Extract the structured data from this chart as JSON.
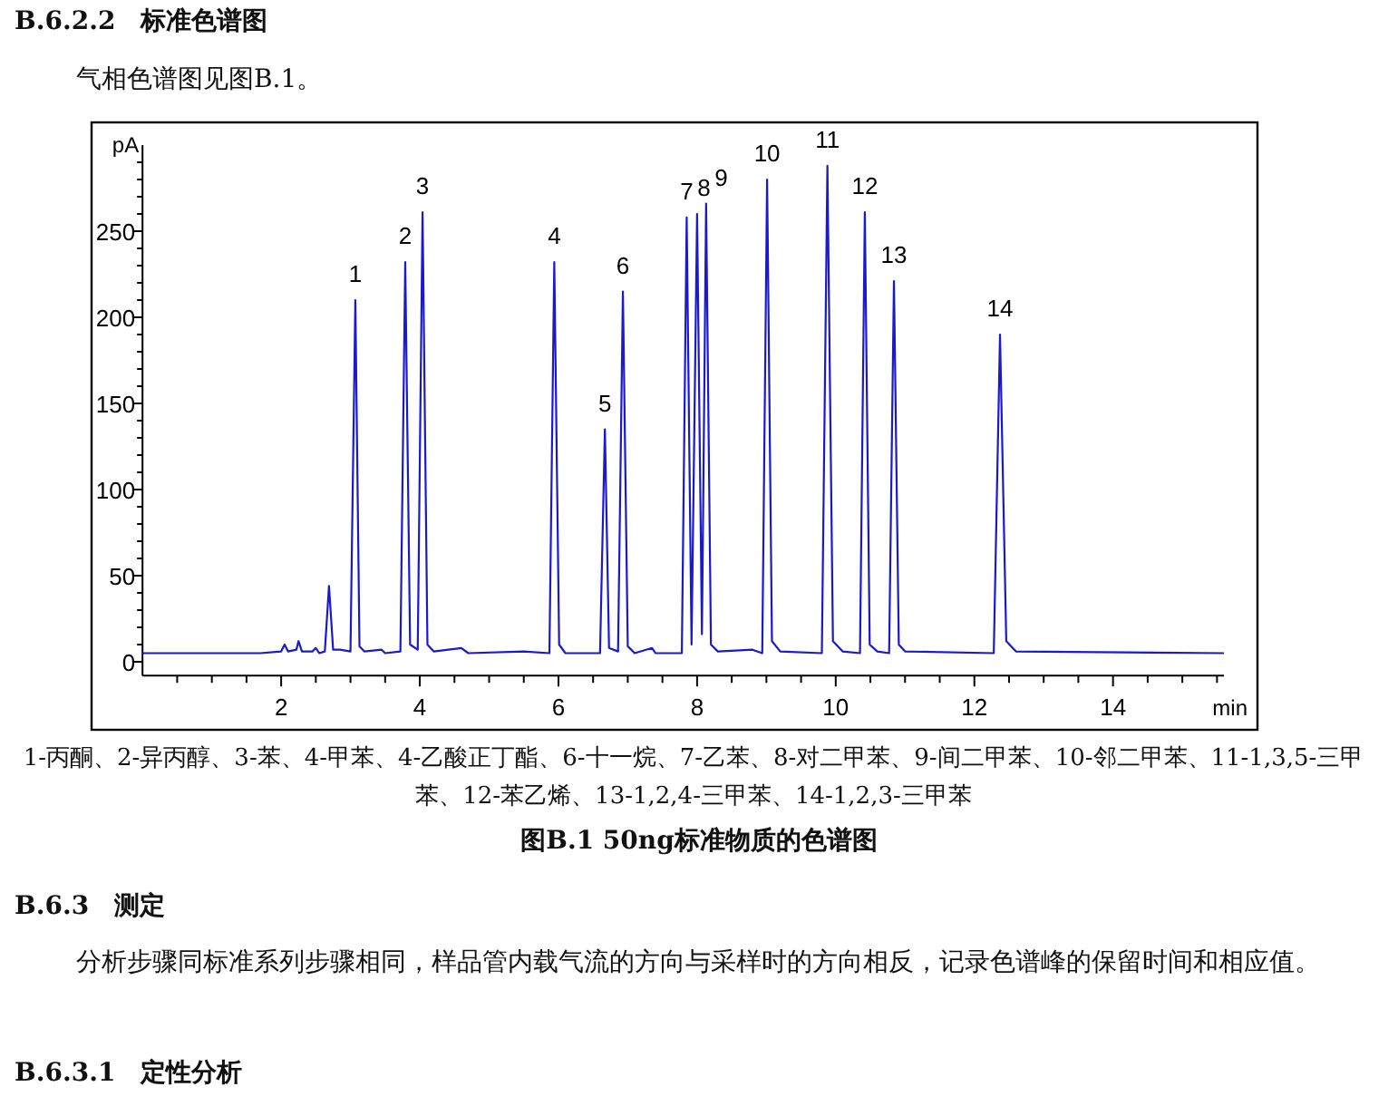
{
  "chart_data": {
    "type": "line",
    "title": "B.6.2.2　标准色谱图",
    "subtitle": "气相色谱图见图B.1。",
    "xlabel": "min",
    "ylabel": "pA",
    "x": [
      0,
      1.7,
      2.0,
      2.05,
      2.1,
      2.22,
      2.25,
      2.3,
      2.45,
      2.5,
      2.55,
      2.63,
      2.69,
      2.75,
      2.85,
      3.0,
      3.07,
      3.13,
      3.2,
      3.45,
      3.5,
      3.72,
      3.79,
      3.86,
      3.97,
      4.04,
      4.11,
      4.2,
      4.6,
      4.7,
      5.5,
      5.87,
      5.94,
      6.01,
      6.1,
      6.6,
      6.67,
      6.73,
      6.86,
      6.93,
      7.0,
      7.1,
      7.35,
      7.4,
      7.78,
      7.85,
      7.92,
      8.0,
      8.07,
      8.13,
      8.2,
      8.3,
      8.8,
      8.94,
      9.01,
      9.08,
      9.2,
      9.8,
      9.88,
      9.96,
      10.1,
      10.35,
      10.42,
      10.49,
      10.6,
      10.77,
      10.84,
      10.91,
      11.0,
      12.28,
      12.37,
      12.46,
      12.6,
      15.6
    ],
    "series": [
      {
        "color": "#1a1acc",
        "values": [
          5,
          5,
          6,
          10,
          6,
          7,
          12,
          6,
          6,
          8,
          5,
          6,
          44,
          7,
          7,
          6,
          210,
          9,
          6,
          7,
          5,
          6,
          232,
          10,
          7,
          261,
          10,
          6,
          8,
          5,
          6,
          5,
          232,
          10,
          5,
          5,
          135,
          8,
          6,
          215,
          9,
          5,
          8,
          5,
          5,
          258,
          10,
          260,
          16,
          266,
          10,
          6,
          7,
          5,
          280,
          12,
          6,
          5,
          288,
          12,
          6,
          5,
          261,
          10,
          6,
          5,
          221,
          10,
          6,
          5,
          190,
          12,
          6,
          5
        ]
      }
    ],
    "xlim": [
      0,
      15.6
    ],
    "ylim": [
      -8,
      300
    ],
    "xticks": [
      {
        "value": 0.5,
        "label": null
      },
      {
        "value": 1,
        "label": null
      },
      {
        "value": 1.5,
        "label": null
      },
      2,
      {
        "value": 2.5,
        "label": null
      },
      {
        "value": 3,
        "label": null
      },
      {
        "value": 3.5,
        "label": null
      },
      4,
      {
        "value": 4.5,
        "label": null
      },
      {
        "value": 5,
        "label": null
      },
      {
        "value": 5.5,
        "label": null
      },
      6,
      {
        "value": 6.5,
        "label": null
      },
      {
        "value": 7,
        "label": null
      },
      {
        "value": 7.5,
        "label": null
      },
      8,
      {
        "value": 8.5,
        "label": null
      },
      {
        "value": 9,
        "label": null
      },
      {
        "value": 9.5,
        "label": null
      },
      10,
      {
        "value": 10.5,
        "label": null
      },
      {
        "value": 11,
        "label": null
      },
      {
        "value": 11.5,
        "label": null
      },
      12,
      {
        "value": 12.5,
        "label": null
      },
      {
        "value": 13,
        "label": null
      },
      {
        "value": 13.5,
        "label": null
      },
      14,
      {
        "value": 14.5,
        "label": null
      },
      {
        "value": 15,
        "label": null
      },
      {
        "value": 15.5,
        "label": null
      }
    ],
    "yticks": [
      0,
      {
        "value": 10,
        "label": null
      },
      {
        "value": 20,
        "label": null
      },
      {
        "value": 30,
        "label": null
      },
      {
        "value": 40,
        "label": null
      },
      50,
      {
        "value": 60,
        "label": null
      },
      {
        "value": 70,
        "label": null
      },
      {
        "value": 80,
        "label": null
      },
      {
        "value": 90,
        "label": null
      },
      100,
      {
        "value": 110,
        "label": null
      },
      {
        "value": 120,
        "label": null
      },
      {
        "value": 130,
        "label": null
      },
      {
        "value": 140,
        "label": null
      },
      150,
      {
        "value": 160,
        "label": null
      },
      {
        "value": 170,
        "label": null
      },
      {
        "value": 180,
        "label": null
      },
      {
        "value": 190,
        "label": null
      },
      200,
      {
        "value": 210,
        "label": null
      },
      {
        "value": 220,
        "label": null
      },
      {
        "value": 230,
        "label": null
      },
      {
        "value": 240,
        "label": null
      },
      250,
      {
        "value": 260,
        "label": null
      },
      {
        "value": 270,
        "label": null
      },
      {
        "value": 280,
        "label": null
      },
      {
        "value": 290,
        "label": null
      }
    ],
    "grid": false,
    "marker": "none",
    "line_style": "solid",
    "annotations": [
      {
        "text": "1",
        "x": 3.07,
        "y": 210
      },
      {
        "text": "2",
        "x": 3.79,
        "y": 232
      },
      {
        "text": "3",
        "x": 4.04,
        "y": 261
      },
      {
        "text": "4",
        "x": 5.94,
        "y": 232
      },
      {
        "text": "5",
        "x": 6.67,
        "y": 135
      },
      {
        "text": "6",
        "x": 6.93,
        "y": 215
      },
      {
        "text": "7",
        "x": 7.85,
        "y": 258
      },
      {
        "text": "8",
        "x": 8.0,
        "y": 260
      },
      {
        "text": "9",
        "x": 8.13,
        "y": 266
      },
      {
        "text": "10",
        "x": 9.01,
        "y": 280
      },
      {
        "text": "11",
        "x": 9.88,
        "y": 288
      },
      {
        "text": "12",
        "x": 10.42,
        "y": 261
      },
      {
        "text": "13",
        "x": 10.84,
        "y": 221
      },
      {
        "text": "14",
        "x": 12.37,
        "y": 190
      },
      "1-丙酮、2-异丙醇、3-苯、4-甲苯、4-乙酸正丁酯、6-十一烷、7-乙苯、8-对二甲苯、9-间二甲苯、10-邻二甲苯、11-1,3,5-三甲苯、12-苯乙烯、13-1,2,4-三甲苯、14-1,2,3-三甲苯",
      "图B.1 50ng标准物质的色谱图",
      "B.6.3　测定",
      "分析步骤同标准系列步骤相同，样品管内载气流的方向与采样时的方向相反，记录色谱峰的保留时间和相应值。",
      "B.6.3.1　定性分析"
    ]
  }
}
